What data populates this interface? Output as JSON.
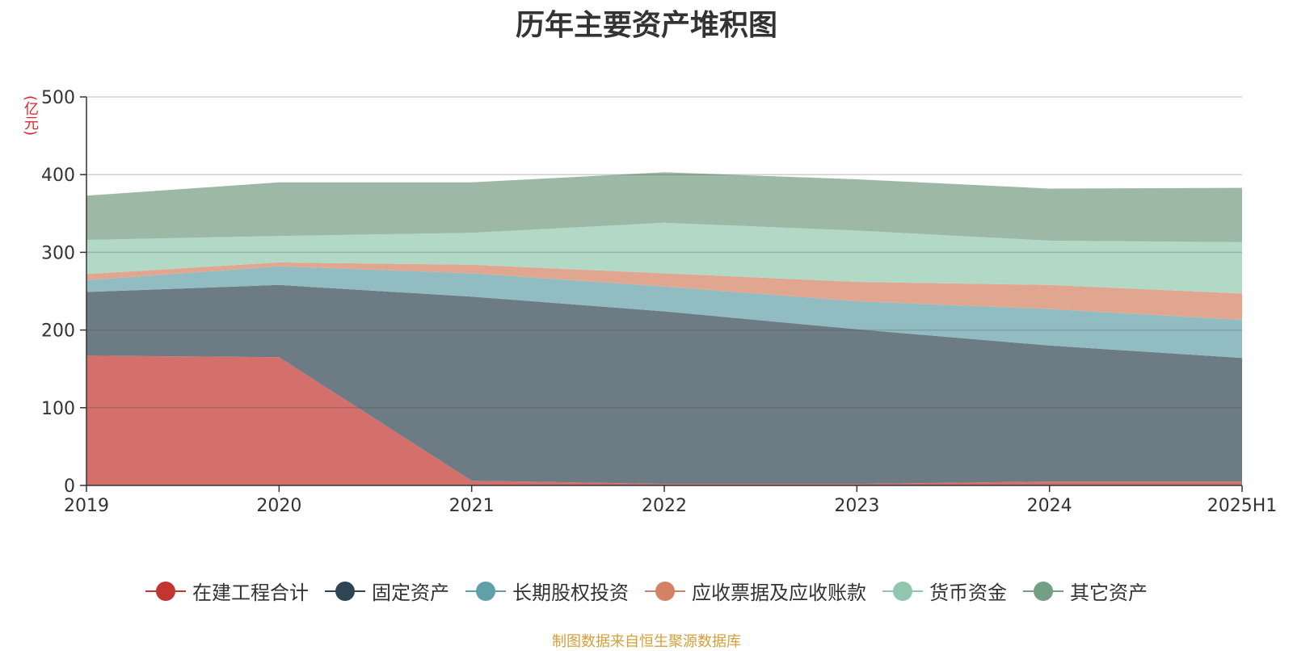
{
  "chart_data": {
    "type": "area",
    "stacked": true,
    "title": "历年主要资产堆积图",
    "unit_label": "(亿元)",
    "categories": [
      "2019",
      "2020",
      "2021",
      "2022",
      "2023",
      "2024",
      "2025H1"
    ],
    "ylim": [
      0,
      500
    ],
    "yticks": [
      0,
      100,
      200,
      300,
      400,
      500
    ],
    "ytick_labels": [
      "0",
      "100",
      "200",
      "300",
      "400",
      "500"
    ],
    "grid": true,
    "legend_position": "bottom",
    "series": [
      {
        "name": "在建工程合计",
        "color": "#c23531",
        "fill": "#d4706c",
        "values": [
          167,
          165,
          6,
          2,
          2,
          5,
          5
        ]
      },
      {
        "name": "固定资产",
        "color": "#2f4554",
        "fill": "#6d7b85",
        "values": [
          82,
          93,
          237,
          222,
          199,
          175,
          159
        ]
      },
      {
        "name": "长期股权投资",
        "color": "#61a0a8",
        "fill": "#90bcc2",
        "values": [
          15,
          24,
          30,
          32,
          36,
          47,
          49
        ]
      },
      {
        "name": "应收票据及应收账款",
        "color": "#d48265",
        "fill": "#e0a690",
        "values": [
          8,
          5,
          11,
          17,
          25,
          31,
          34
        ]
      },
      {
        "name": "货币资金",
        "color": "#91c7ae",
        "fill": "#b2d8c6",
        "values": [
          44,
          34,
          41,
          65,
          66,
          57,
          66
        ]
      },
      {
        "name": "其它资产",
        "color": "#749f83",
        "fill": "#9db9a6",
        "values": [
          57,
          69,
          65,
          65,
          66,
          67,
          70
        ]
      }
    ]
  },
  "source_text": "制图数据来自恒生聚源数据库"
}
